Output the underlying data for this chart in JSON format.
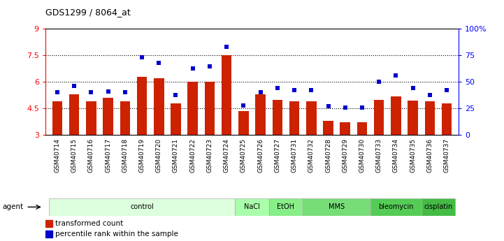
{
  "title": "GDS1299 / 8064_at",
  "samples": [
    "GSM40714",
    "GSM40715",
    "GSM40716",
    "GSM40717",
    "GSM40718",
    "GSM40719",
    "GSM40720",
    "GSM40721",
    "GSM40722",
    "GSM40723",
    "GSM40724",
    "GSM40725",
    "GSM40726",
    "GSM40727",
    "GSM40731",
    "GSM40732",
    "GSM40728",
    "GSM40729",
    "GSM40730",
    "GSM40733",
    "GSM40734",
    "GSM40735",
    "GSM40736",
    "GSM40737"
  ],
  "bar_values": [
    4.9,
    5.3,
    4.9,
    5.1,
    4.9,
    6.3,
    6.2,
    4.8,
    6.0,
    6.0,
    7.5,
    4.35,
    5.3,
    5.0,
    4.9,
    4.9,
    3.8,
    3.7,
    3.7,
    5.0,
    5.2,
    4.95,
    4.9,
    4.8
  ],
  "dot_values": [
    40,
    46,
    40,
    41,
    40,
    73,
    68,
    38,
    63,
    65,
    83,
    28,
    40,
    44,
    42,
    42,
    27,
    26,
    26,
    50,
    56,
    44,
    38,
    42
  ],
  "ylim_left": [
    3,
    9
  ],
  "ylim_right": [
    0,
    100
  ],
  "yticks_left": [
    3,
    4.5,
    6,
    7.5,
    9
  ],
  "yticks_right": [
    0,
    25,
    50,
    75,
    100
  ],
  "ytick_labels_right": [
    "0",
    "25",
    "50",
    "75",
    "100%"
  ],
  "hlines": [
    4.5,
    6.0,
    7.5
  ],
  "bar_color": "#cc2200",
  "dot_color": "#0000cc",
  "agent_groups": [
    {
      "label": "control",
      "start": 0,
      "end": 11,
      "color": "#ddffdd"
    },
    {
      "label": "NaCl",
      "start": 11,
      "end": 13,
      "color": "#aaffaa"
    },
    {
      "label": "EtOH",
      "start": 13,
      "end": 15,
      "color": "#88ee88"
    },
    {
      "label": "MMS",
      "start": 15,
      "end": 19,
      "color": "#77dd77"
    },
    {
      "label": "bleomycin",
      "start": 19,
      "end": 22,
      "color": "#55cc55"
    },
    {
      "label": "cisplatin",
      "start": 22,
      "end": 24,
      "color": "#44bb44"
    }
  ],
  "legend_bar_label": "transformed count",
  "legend_dot_label": "percentile rank within the sample",
  "agent_label": "agent",
  "bgcolor": "#ffffff"
}
